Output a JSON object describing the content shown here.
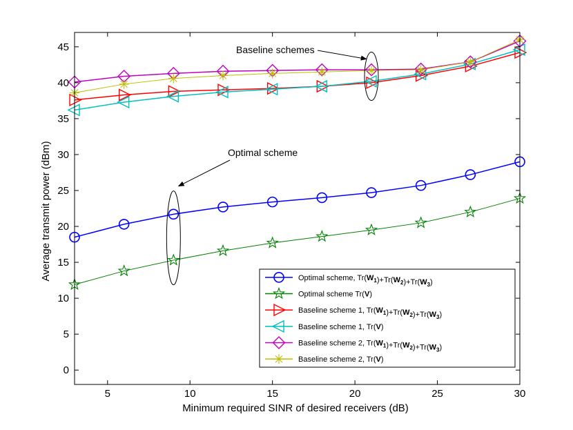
{
  "chart_data": {
    "type": "line",
    "title": "",
    "xlabel": "Minimum required SINR of desired receivers (dB)",
    "ylabel": "Average transmit power (dBm)",
    "xlim": [
      3,
      30
    ],
    "ylim": [
      -2,
      47
    ],
    "xticks": [
      5,
      10,
      15,
      20,
      25,
      30
    ],
    "yticks": [
      0,
      5,
      10,
      15,
      20,
      25,
      30,
      35,
      40,
      45
    ],
    "x": [
      3,
      6,
      9,
      12,
      15,
      18,
      21,
      24,
      27,
      30
    ],
    "legend_position": "lower-right",
    "series": [
      {
        "name": "Optimal scheme, Tr(W1)+Tr(W2)+Tr(W3)",
        "color": "#0000ff",
        "marker": "circle",
        "values": [
          18.5,
          20.3,
          21.7,
          22.7,
          23.4,
          24.0,
          24.7,
          25.7,
          27.2,
          29.0
        ],
        "label": {
          "pre": "Optimal scheme, Tr(",
          "terms": [
            "1",
            "2",
            "3"
          ],
          "post": ")"
        }
      },
      {
        "name": "Optimal scheme Tr(V)",
        "color": "#008000",
        "marker": "star5",
        "values": [
          11.9,
          13.8,
          15.3,
          16.6,
          17.7,
          18.6,
          19.5,
          20.5,
          22.0,
          23.9
        ],
        "label": {
          "pre": "Optimal scheme Tr(",
          "bold": "V",
          "post": ")"
        }
      },
      {
        "name": "Baseline scheme 1, Tr(W1)+Tr(W2)+Tr(W3)",
        "color": "#ff0000",
        "marker": "triangle-right",
        "values": [
          37.6,
          38.3,
          38.8,
          39.0,
          39.2,
          39.5,
          40.0,
          41.0,
          42.3,
          44.2
        ],
        "label": {
          "pre": "Baseline scheme 1, Tr(",
          "terms": [
            "1",
            "2",
            "3"
          ],
          "post": ")"
        }
      },
      {
        "name": "Baseline scheme 1, Tr(V)",
        "color": "#00bfbf",
        "marker": "triangle-left",
        "values": [
          36.2,
          37.3,
          38.1,
          38.7,
          39.1,
          39.5,
          40.2,
          41.2,
          42.6,
          44.6
        ],
        "label": {
          "pre": "Baseline scheme 1, Tr(",
          "bold": "V",
          "post": ")"
        }
      },
      {
        "name": "Baseline scheme 2, Tr(W1)+Tr(W2)+Tr(W3)",
        "color": "#bf00bf",
        "marker": "diamond",
        "values": [
          40.1,
          40.9,
          41.3,
          41.6,
          41.7,
          41.8,
          41.8,
          41.9,
          42.9,
          45.8
        ],
        "label": {
          "pre": "Baseline scheme 2, Tr(",
          "terms": [
            "1",
            "2",
            "3"
          ],
          "post": ")"
        }
      },
      {
        "name": "Baseline scheme 2, Tr(V)",
        "color": "#bfbf00",
        "marker": "asterisk",
        "values": [
          38.6,
          39.8,
          40.6,
          41.0,
          41.3,
          41.5,
          41.7,
          41.8,
          42.9,
          46.0
        ],
        "label": {
          "pre": "Baseline scheme 2, Tr(",
          "bold": "V",
          "post": ")"
        }
      }
    ],
    "annotations": [
      {
        "text": "Baseline schemes",
        "ellipse_center": [
          21,
          40.9
        ],
        "arrow_to": [
          20.7,
          43.3
        ]
      },
      {
        "text": "Optimal scheme",
        "ellipse_center": [
          9,
          18.4
        ],
        "arrow_to": [
          9.3,
          25.6
        ]
      }
    ]
  }
}
